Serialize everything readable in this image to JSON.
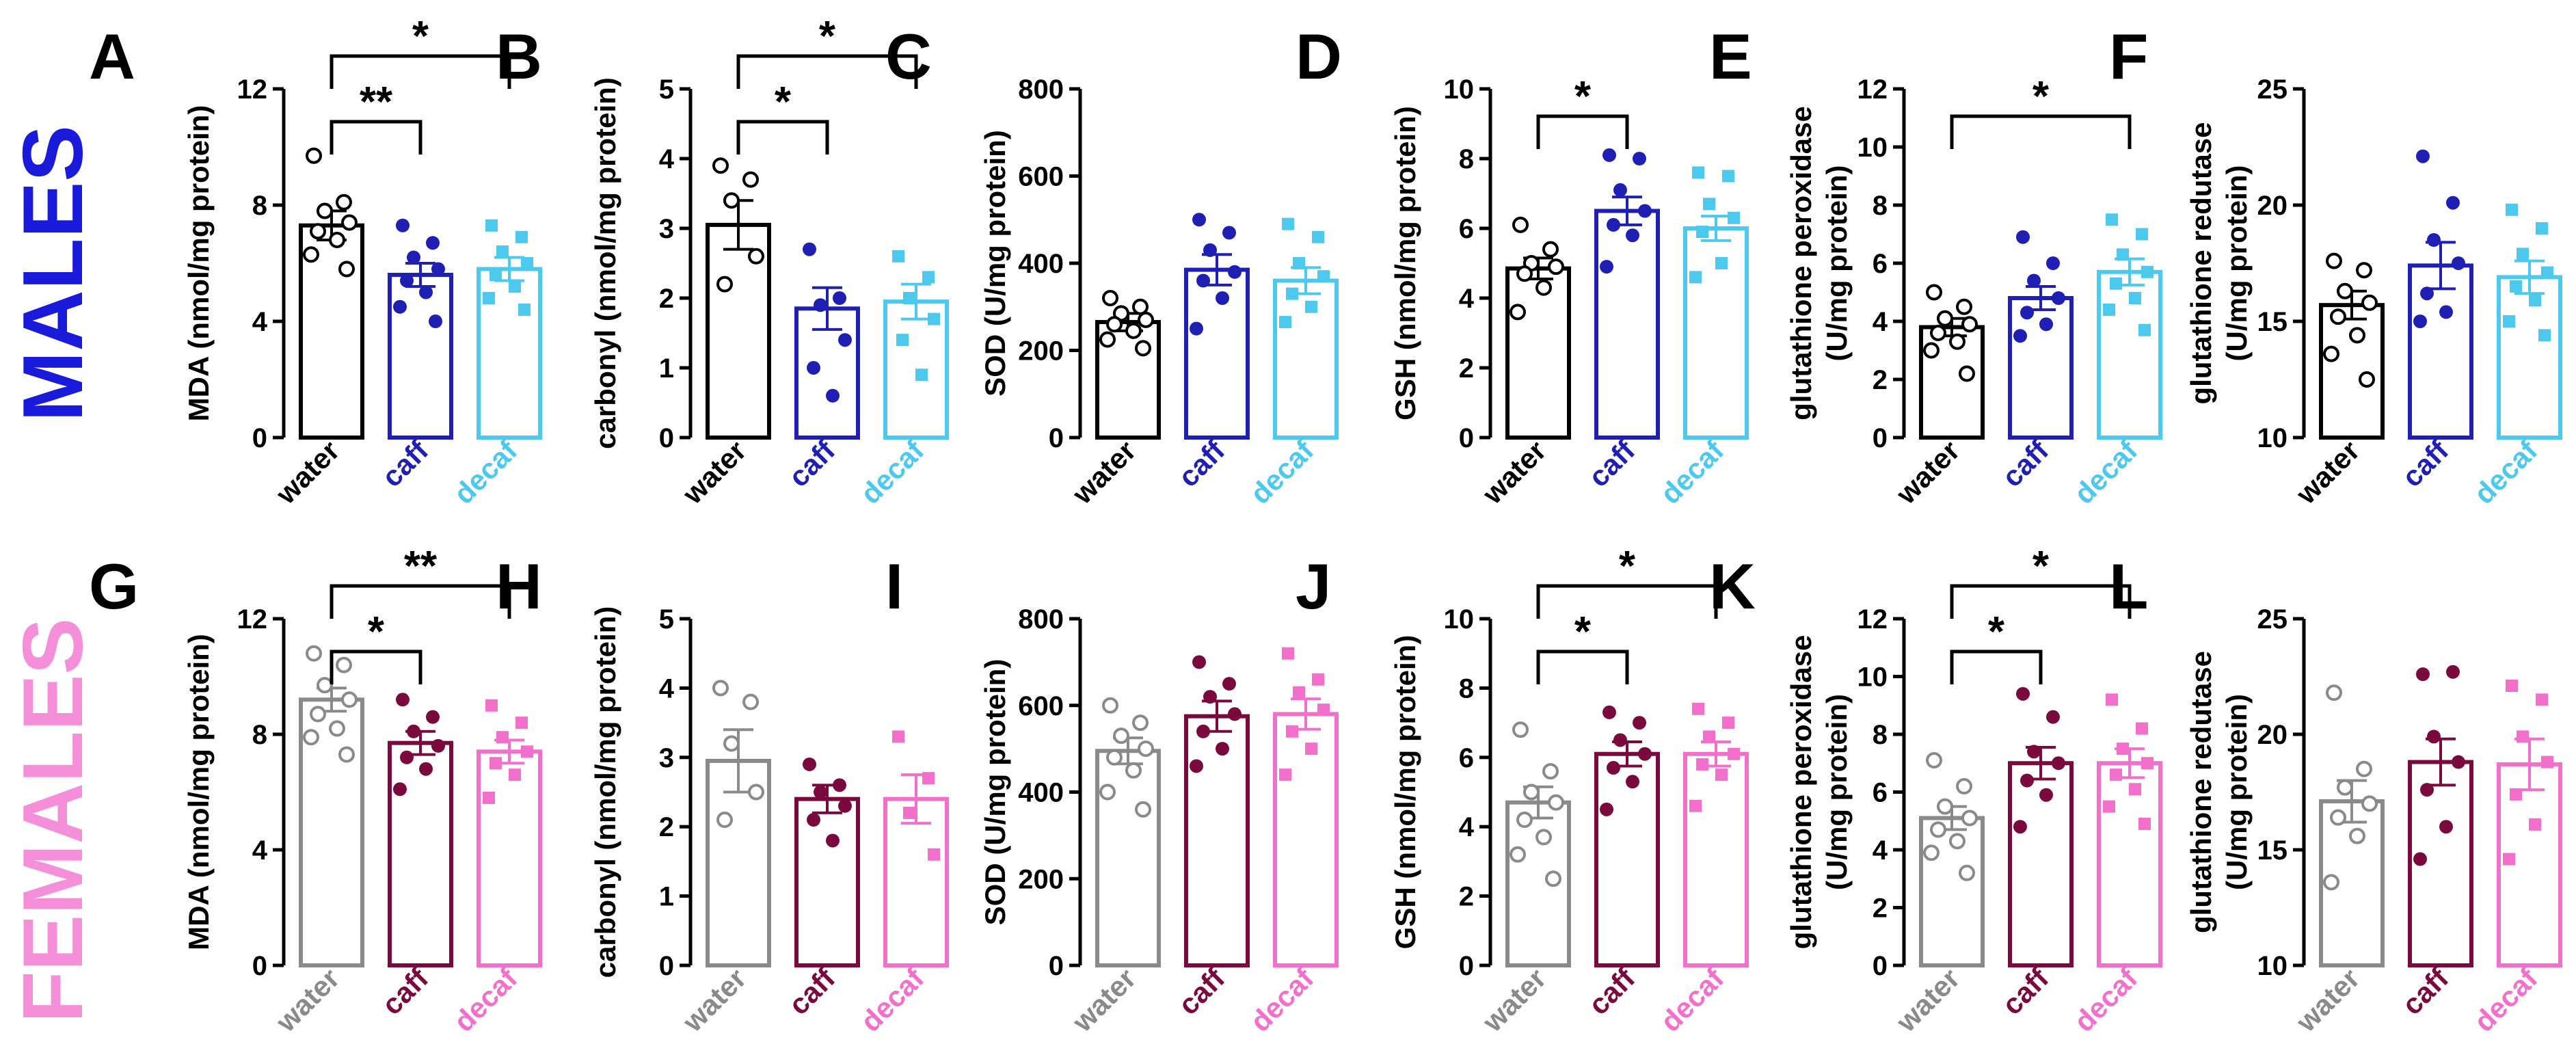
{
  "rows": [
    {
      "label": "MALES",
      "color": "#1a1adb",
      "group_colors": [
        "#000000",
        "#1f1fb4",
        "#4cc9ec"
      ],
      "group_labels": [
        "water",
        "caff",
        "decaf"
      ]
    },
    {
      "label": "FEMALES",
      "color": "#f58fd9",
      "group_colors": [
        "#8a8a8a",
        "#7a0a3e",
        "#f26fcb"
      ],
      "group_labels": [
        "water",
        "caff",
        "decaf"
      ]
    }
  ],
  "chart_data": [
    {
      "panel": "A",
      "row": 0,
      "type": "bar",
      "ylabel": "MDA (nmol/mg protein)",
      "ylim": [
        0,
        12
      ],
      "yticks": [
        0,
        4,
        8,
        12
      ],
      "yticklabels": [
        "0",
        "4",
        "8",
        "12"
      ],
      "categories": [
        "water",
        "caff",
        "decaf"
      ],
      "values": [
        7.3,
        5.6,
        5.8
      ],
      "sem": [
        0.5,
        0.4,
        0.4
      ],
      "points": [
        [
          9.7,
          8.1,
          7.8,
          7.4,
          7.1,
          6.8,
          6.3,
          5.8
        ],
        [
          7.3,
          6.7,
          6.2,
          5.8,
          5.4,
          5.0,
          4.5,
          4.0
        ],
        [
          7.3,
          6.9,
          6.4,
          6.0,
          5.6,
          5.2,
          4.8,
          4.4
        ]
      ],
      "markers": [
        "open-circle",
        "circle",
        "square"
      ],
      "comparisons": [
        {
          "from": 0,
          "to": 2,
          "label": "*"
        },
        {
          "from": 0,
          "to": 1,
          "label": "**"
        }
      ]
    },
    {
      "panel": "B",
      "row": 0,
      "type": "bar",
      "ylabel": "carbonyl (nmol/mg protein)",
      "ylim": [
        0,
        5
      ],
      "yticks": [
        0,
        1,
        2,
        3,
        4,
        5
      ],
      "yticklabels": [
        "0",
        "1",
        "2",
        "3",
        "4",
        "5"
      ],
      "categories": [
        "water",
        "caff",
        "decaf"
      ],
      "values": [
        3.05,
        1.85,
        1.95
      ],
      "sem": [
        0.35,
        0.3,
        0.25
      ],
      "points": [
        [
          3.9,
          3.7,
          3.4,
          2.6,
          2.2
        ],
        [
          2.7,
          2.0,
          1.9,
          1.4,
          1.0,
          0.6
        ],
        [
          2.6,
          2.3,
          2.0,
          1.7,
          1.4,
          0.9
        ]
      ],
      "markers": [
        "open-circle",
        "circle",
        "square"
      ],
      "comparisons": [
        {
          "from": 0,
          "to": 2,
          "label": "*"
        },
        {
          "from": 0,
          "to": 1,
          "label": "*"
        }
      ]
    },
    {
      "panel": "C",
      "row": 0,
      "type": "bar",
      "ylabel": "SOD (U/mg protein)",
      "ylim": [
        0,
        800
      ],
      "yticks": [
        0,
        200,
        400,
        600,
        800
      ],
      "yticklabels": [
        "0",
        "200",
        "400",
        "600",
        "800"
      ],
      "categories": [
        "water",
        "caff",
        "decaf"
      ],
      "values": [
        265,
        385,
        360
      ],
      "sem": [
        20,
        35,
        30
      ],
      "points": [
        [
          320,
          300,
          285,
          270,
          260,
          245,
          225,
          205
        ],
        [
          500,
          470,
          430,
          380,
          360,
          320,
          250
        ],
        [
          490,
          460,
          400,
          370,
          330,
          300,
          265
        ]
      ],
      "markers": [
        "open-circle",
        "circle",
        "square"
      ],
      "comparisons": []
    },
    {
      "panel": "D",
      "row": 0,
      "type": "bar",
      "ylabel": "GSH (nmol/mg protein)",
      "ylim": [
        0,
        10
      ],
      "yticks": [
        0,
        2,
        4,
        6,
        8,
        10
      ],
      "yticklabels": [
        "0",
        "2",
        "4",
        "6",
        "8",
        "10"
      ],
      "categories": [
        "water",
        "caff",
        "decaf"
      ],
      "values": [
        4.85,
        6.5,
        6.0
      ],
      "sem": [
        0.3,
        0.4,
        0.35
      ],
      "points": [
        [
          6.1,
          5.4,
          5.0,
          4.9,
          4.7,
          4.3,
          3.6
        ],
        [
          8.1,
          8.0,
          7.1,
          6.5,
          6.1,
          5.8,
          4.9
        ],
        [
          7.6,
          7.5,
          6.7,
          6.3,
          5.9,
          5.0,
          4.6
        ]
      ],
      "markers": [
        "open-circle",
        "circle",
        "square"
      ],
      "comparisons": [
        {
          "from": 0,
          "to": 1,
          "label": "*"
        }
      ]
    },
    {
      "panel": "E",
      "row": 0,
      "type": "bar",
      "ylabel": "glutathione peroxidase|(U/mg protein)",
      "ylim": [
        0,
        12
      ],
      "yticks": [
        0,
        2,
        4,
        6,
        8,
        10,
        12
      ],
      "yticklabels": [
        "0",
        "2",
        "4",
        "6",
        "8",
        "10",
        "12"
      ],
      "categories": [
        "water",
        "caff",
        "decaf"
      ],
      "values": [
        3.8,
        4.8,
        5.7
      ],
      "sem": [
        0.3,
        0.4,
        0.45
      ],
      "points": [
        [
          5.0,
          4.5,
          4.1,
          3.9,
          3.6,
          3.3,
          3.0,
          2.2
        ],
        [
          6.9,
          6.0,
          5.4,
          4.8,
          4.3,
          3.9,
          3.5
        ],
        [
          7.5,
          7.0,
          6.3,
          5.7,
          5.3,
          4.8,
          4.4,
          3.7
        ]
      ],
      "markers": [
        "open-circle",
        "circle",
        "square"
      ],
      "comparisons": [
        {
          "from": 0,
          "to": 2,
          "label": "*"
        }
      ]
    },
    {
      "panel": "F",
      "row": 0,
      "type": "bar",
      "ylabel": "glutathione redutase|(U/mg protein)",
      "ylim": [
        10,
        25
      ],
      "yticks": [
        10,
        15,
        20,
        25
      ],
      "yticklabels": [
        "10",
        "15",
        "20",
        "25"
      ],
      "categories": [
        "water",
        "caff",
        "decaf"
      ],
      "values": [
        15.7,
        17.4,
        16.9
      ],
      "sem": [
        0.6,
        1.0,
        0.7
      ],
      "points": [
        [
          17.6,
          17.2,
          16.3,
          15.8,
          15.2,
          14.4,
          13.6,
          12.5
        ],
        [
          22.1,
          20.1,
          18.5,
          17.5,
          16.2,
          15.4,
          15.0
        ],
        [
          19.8,
          19.0,
          17.9,
          17.1,
          16.5,
          15.9,
          15.0,
          14.4
        ]
      ],
      "markers": [
        "open-circle",
        "circle",
        "square"
      ],
      "comparisons": []
    },
    {
      "panel": "G",
      "row": 1,
      "type": "bar",
      "ylabel": "MDA (nmol/mg protein)",
      "ylim": [
        0,
        12
      ],
      "yticks": [
        0,
        4,
        8,
        12
      ],
      "yticklabels": [
        "0",
        "4",
        "8",
        "12"
      ],
      "categories": [
        "water",
        "caff",
        "decaf"
      ],
      "values": [
        9.2,
        7.7,
        7.4
      ],
      "sem": [
        0.4,
        0.4,
        0.4
      ],
      "points": [
        [
          10.8,
          10.4,
          9.7,
          9.2,
          8.7,
          8.2,
          7.9,
          7.3
        ],
        [
          9.2,
          8.6,
          8.1,
          7.6,
          7.2,
          6.8,
          6.1
        ],
        [
          9.0,
          8.4,
          7.9,
          7.4,
          7.0,
          6.6,
          5.8
        ]
      ],
      "markers": [
        "open-circle",
        "circle",
        "square"
      ],
      "comparisons": [
        {
          "from": 0,
          "to": 2,
          "label": "**"
        },
        {
          "from": 0,
          "to": 1,
          "label": "*"
        }
      ]
    },
    {
      "panel": "H",
      "row": 1,
      "type": "bar",
      "ylabel": "carbonyl (nmol/mg protein)",
      "ylim": [
        0,
        5
      ],
      "yticks": [
        0,
        1,
        2,
        3,
        4,
        5
      ],
      "yticklabels": [
        "0",
        "1",
        "2",
        "3",
        "4",
        "5"
      ],
      "categories": [
        "water",
        "caff",
        "decaf"
      ],
      "values": [
        2.95,
        2.4,
        2.4
      ],
      "sem": [
        0.45,
        0.2,
        0.35
      ],
      "points": [
        [
          4.0,
          3.8,
          3.2,
          2.5,
          2.1
        ],
        [
          2.9,
          2.6,
          2.5,
          2.3,
          2.1,
          1.8
        ],
        [
          3.3,
          2.7,
          2.2,
          1.6
        ]
      ],
      "markers": [
        "open-circle",
        "circle",
        "square"
      ],
      "comparisons": []
    },
    {
      "panel": "I",
      "row": 1,
      "type": "bar",
      "ylabel": "SOD (U/mg protein)",
      "ylim": [
        0,
        800
      ],
      "yticks": [
        0,
        200,
        400,
        600,
        800
      ],
      "yticklabels": [
        "0",
        "200",
        "400",
        "600",
        "800"
      ],
      "categories": [
        "water",
        "caff",
        "decaf"
      ],
      "values": [
        495,
        575,
        580
      ],
      "sem": [
        30,
        35,
        35
      ],
      "points": [
        [
          600,
          560,
          530,
          500,
          480,
          450,
          400,
          360
        ],
        [
          700,
          650,
          620,
          580,
          540,
          500,
          460
        ],
        [
          720,
          660,
          630,
          590,
          540,
          500,
          440
        ]
      ],
      "markers": [
        "open-circle",
        "circle",
        "square"
      ],
      "comparisons": []
    },
    {
      "panel": "J",
      "row": 1,
      "type": "bar",
      "ylabel": "GSH (nmol/mg protein)",
      "ylim": [
        0,
        10
      ],
      "yticks": [
        0,
        2,
        4,
        6,
        8,
        10
      ],
      "yticklabels": [
        "0",
        "2",
        "4",
        "6",
        "8",
        "10"
      ],
      "categories": [
        "water",
        "caff",
        "decaf"
      ],
      "values": [
        4.7,
        6.1,
        6.1
      ],
      "sem": [
        0.45,
        0.35,
        0.35
      ],
      "points": [
        [
          6.8,
          5.6,
          5.0,
          4.7,
          4.2,
          3.7,
          3.2,
          2.5
        ],
        [
          7.3,
          7.0,
          6.5,
          6.1,
          5.7,
          5.3,
          4.5
        ],
        [
          7.4,
          7.0,
          6.6,
          6.1,
          5.8,
          5.5,
          4.6
        ]
      ],
      "markers": [
        "open-circle",
        "circle",
        "square"
      ],
      "comparisons": [
        {
          "from": 0,
          "to": 2,
          "label": "*"
        },
        {
          "from": 0,
          "to": 1,
          "label": "*"
        }
      ]
    },
    {
      "panel": "K",
      "row": 1,
      "type": "bar",
      "ylabel": "glutathione peroxidase|(U/mg protein)",
      "ylim": [
        0,
        12
      ],
      "yticks": [
        0,
        2,
        4,
        6,
        8,
        10,
        12
      ],
      "yticklabels": [
        "0",
        "2",
        "4",
        "6",
        "8",
        "10",
        "12"
      ],
      "categories": [
        "water",
        "caff",
        "decaf"
      ],
      "values": [
        5.1,
        7.0,
        7.0
      ],
      "sem": [
        0.4,
        0.55,
        0.5
      ],
      "points": [
        [
          7.1,
          6.2,
          5.5,
          5.1,
          4.7,
          4.3,
          3.9,
          3.2
        ],
        [
          9.4,
          8.6,
          7.4,
          7.0,
          6.4,
          5.9,
          4.8
        ],
        [
          9.2,
          8.2,
          7.5,
          7.0,
          6.6,
          6.1,
          5.5,
          4.9
        ]
      ],
      "markers": [
        "open-circle",
        "circle",
        "square"
      ],
      "comparisons": [
        {
          "from": 0,
          "to": 2,
          "label": "*"
        },
        {
          "from": 0,
          "to": 1,
          "label": "*"
        }
      ]
    },
    {
      "panel": "L",
      "row": 1,
      "type": "bar",
      "ylabel": "glutathione redutase|(U/mg protein)",
      "ylim": [
        10,
        25
      ],
      "yticks": [
        10,
        15,
        20,
        25
      ],
      "yticklabels": [
        "10",
        "15",
        "20",
        "25"
      ],
      "categories": [
        "water",
        "caff",
        "decaf"
      ],
      "values": [
        17.1,
        18.8,
        18.7
      ],
      "sem": [
        0.9,
        1.0,
        1.1
      ],
      "points": [
        [
          21.8,
          18.5,
          17.7,
          17.0,
          16.4,
          15.6,
          13.6
        ],
        [
          22.6,
          22.7,
          19.9,
          18.8,
          17.6,
          16.0,
          14.6
        ],
        [
          22.1,
          21.5,
          19.9,
          18.8,
          17.4,
          16.1,
          14.6
        ]
      ],
      "markers": [
        "open-circle",
        "circle",
        "square"
      ],
      "comparisons": []
    }
  ]
}
